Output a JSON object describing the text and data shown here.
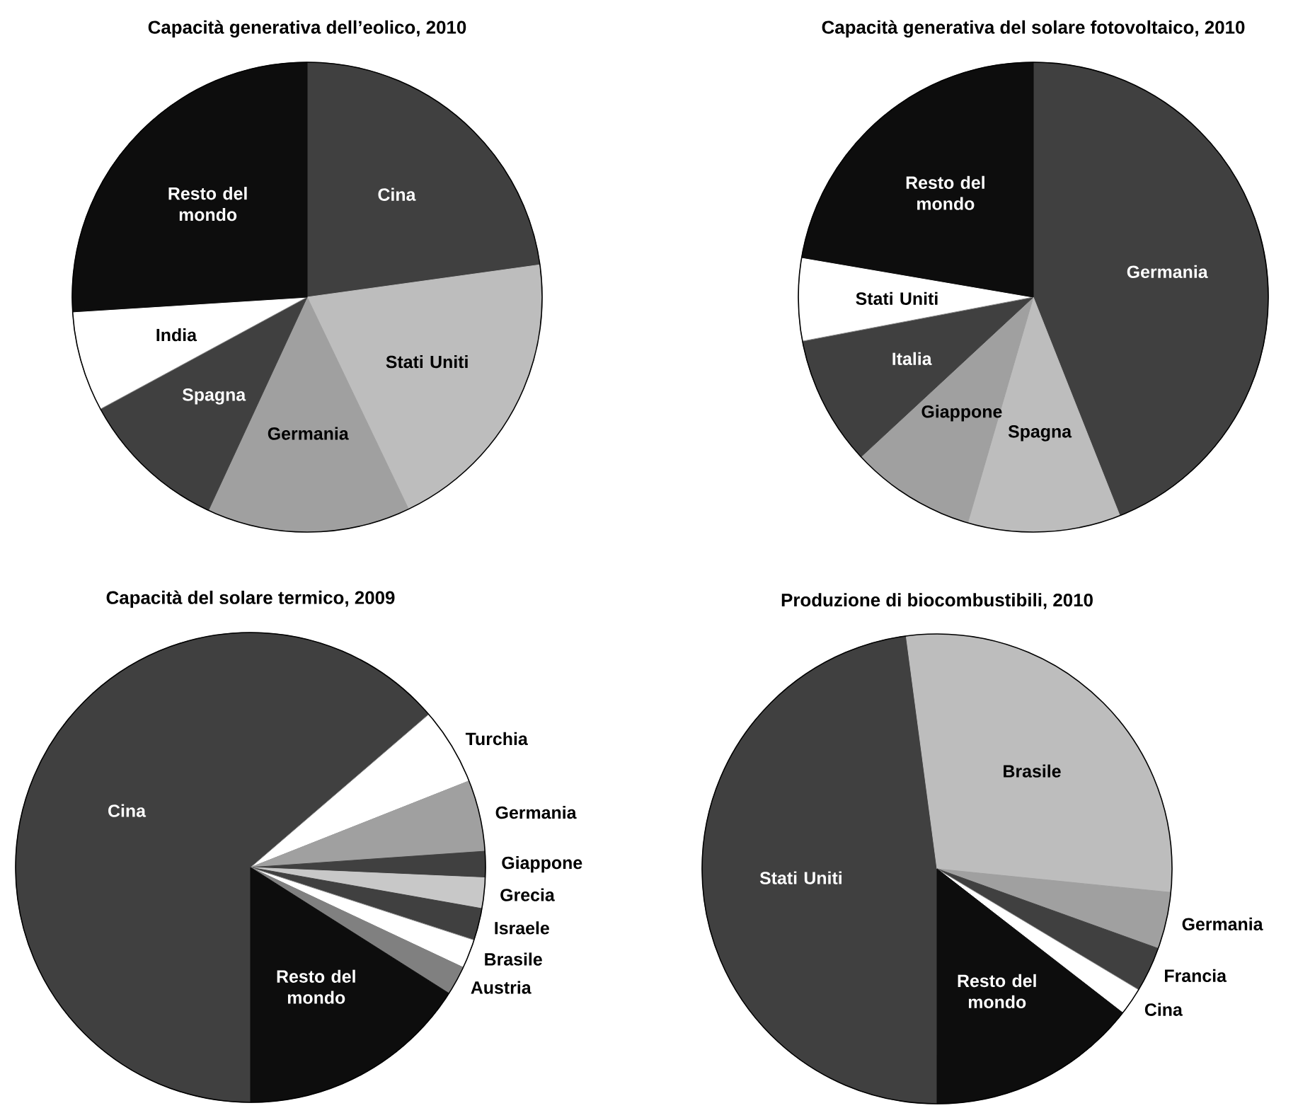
{
  "chart_data": [
    {
      "type": "pie",
      "title": "Capacità generativa dell’eolico, 2010",
      "categories": [
        "Cina",
        "Stati Uniti",
        "Germania",
        "Spagna",
        "India",
        "Resto del mondo"
      ],
      "values": [
        22.8,
        20.1,
        14.0,
        10.2,
        6.9,
        26.0
      ],
      "colors": [
        "#404040",
        "#bdbdbd",
        "#a0a0a0",
        "#404040",
        "#ffffff",
        "#0d0d0d"
      ]
    },
    {
      "type": "pie",
      "title": "Capacità generativa del solare fotovoltaico, 2010",
      "categories": [
        "Germania",
        "Spagna",
        "Giappone",
        "Italia",
        "Stati Uniti",
        "Resto del mondo"
      ],
      "values": [
        44.0,
        10.5,
        8.6,
        8.9,
        5.7,
        22.3
      ],
      "colors": [
        "#404040",
        "#bdbdbd",
        "#a0a0a0",
        "#404040",
        "#ffffff",
        "#0d0d0d"
      ]
    },
    {
      "type": "pie",
      "title": "Capacità del solare termico, 2009",
      "categories": [
        "Cina",
        "Turchia",
        "Germania",
        "Giappone",
        "Grecia",
        "Israele",
        "Brasile",
        "Austria",
        "Resto del mondo"
      ],
      "values": [
        63.7,
        5.3,
        4.9,
        1.8,
        2.1,
        2.2,
        2.0,
        2.0,
        16.0
      ],
      "colors": [
        "#404040",
        "#ffffff",
        "#a0a0a0",
        "#404040",
        "#c8c8c8",
        "#404040",
        "#ffffff",
        "#808080",
        "#0d0d0d"
      ]
    },
    {
      "type": "pie",
      "title": "Produzione di biocombustibili, 2010",
      "categories": [
        "Stati Uniti",
        "Brasile",
        "Germania",
        "Francia",
        "Cina",
        "Resto del mondo"
      ],
      "values": [
        47.9,
        28.7,
        3.9,
        3.1,
        1.9,
        14.5
      ],
      "colors": [
        "#404040",
        "#bdbdbd",
        "#a0a0a0",
        "#404040",
        "#ffffff",
        "#0d0d0d"
      ]
    }
  ]
}
